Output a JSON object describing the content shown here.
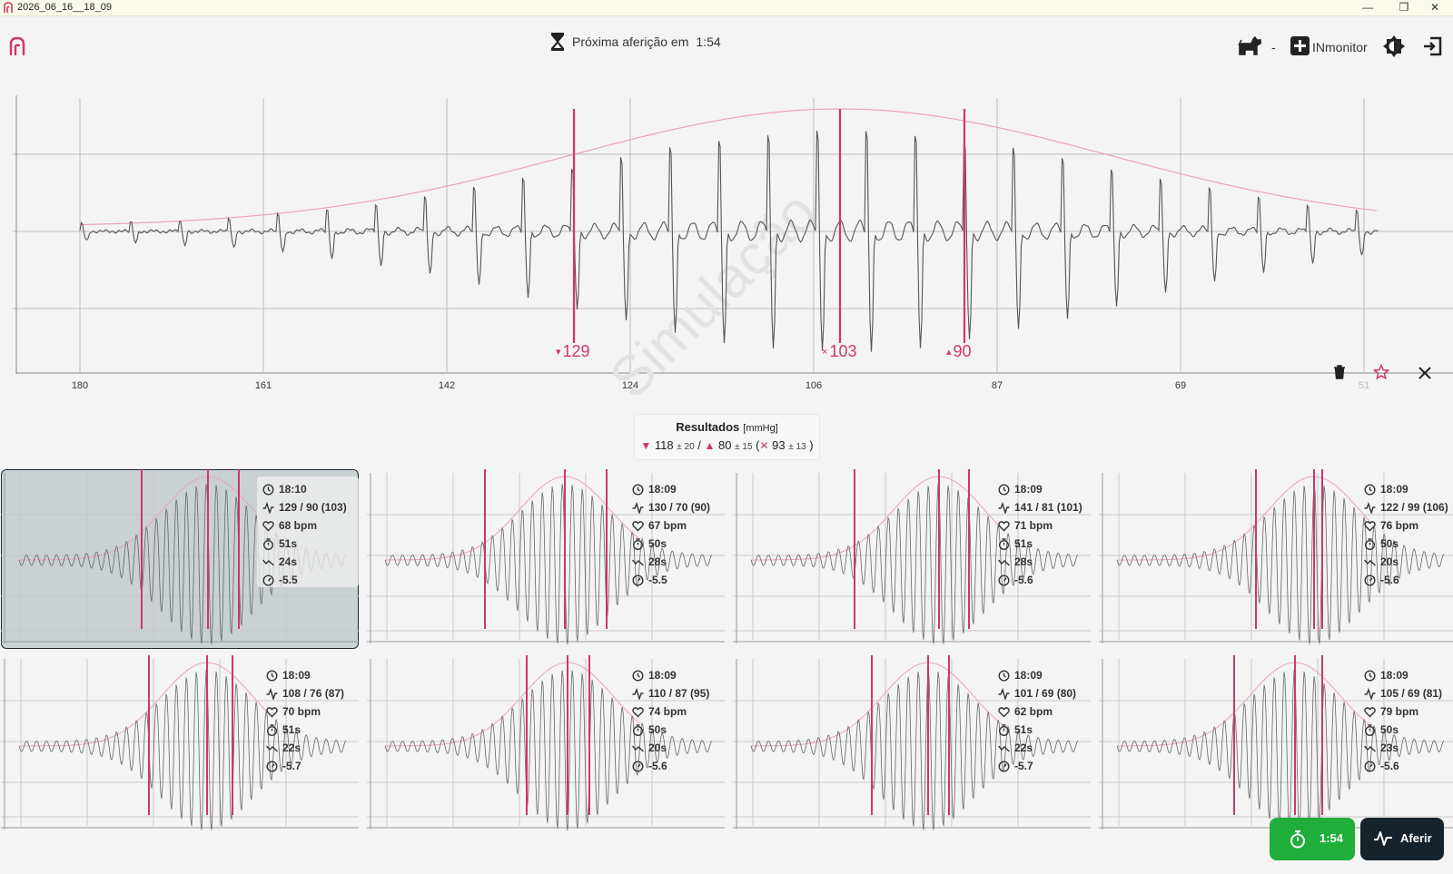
{
  "window": {
    "title": "2026_06_16__18_09",
    "controls": [
      "—",
      "❐",
      "✕"
    ]
  },
  "header": {
    "next_measurement_label": "Próxima aferição em",
    "next_measurement_time": "1:54",
    "separator": "-",
    "device_name": "INmonitor",
    "icons": [
      "app-logo-icon",
      "hourglass-icon",
      "dog-icon",
      "add-icon",
      "brightness-icon",
      "logout-icon"
    ]
  },
  "main_chart": {
    "watermark": "Simulação",
    "x_ticks": [
      "180",
      "161",
      "142",
      "124",
      "106",
      "87",
      "69",
      "51"
    ],
    "markers": [
      {
        "label": "129",
        "symbol": "▾",
        "kind": "systolic"
      },
      {
        "label": "103",
        "symbol": "×",
        "kind": "mean"
      },
      {
        "label": "90",
        "symbol": "▴",
        "kind": "diastolic"
      }
    ],
    "actions": [
      "trash-icon",
      "star-icon",
      "close-icon"
    ]
  },
  "results": {
    "title": "Resultados",
    "unit": "[mmHg]",
    "systolic": "118",
    "systolic_pm": "± 20",
    "slash": "/",
    "diastolic": "80",
    "diastolic_pm": "± 15",
    "open_paren": "(",
    "mean": "93",
    "mean_pm": "± 13",
    "close_paren": ")"
  },
  "measurements": [
    {
      "time": "18:10",
      "pressure": "129 / 90 (103)",
      "hr": "68 bpm",
      "duration": "51s",
      "deflation": "24s",
      "slope": "-5.5",
      "selected": true
    },
    {
      "time": "18:09",
      "pressure": "130 / 70 (90)",
      "hr": "67 bpm",
      "duration": "50s",
      "deflation": "28s",
      "slope": "-5.5",
      "selected": false
    },
    {
      "time": "18:09",
      "pressure": "141 / 81 (101)",
      "hr": "71 bpm",
      "duration": "51s",
      "deflation": "28s",
      "slope": "-5.6",
      "selected": false
    },
    {
      "time": "18:09",
      "pressure": "122 / 99 (106)",
      "hr": "76 bpm",
      "duration": "50s",
      "deflation": "20s",
      "slope": "-5.6",
      "selected": false
    },
    {
      "time": "18:09",
      "pressure": "108 / 76 (87)",
      "hr": "70 bpm",
      "duration": "51s",
      "deflation": "22s",
      "slope": "-5.7",
      "selected": false
    },
    {
      "time": "18:09",
      "pressure": "110 / 87 (95)",
      "hr": "74 bpm",
      "duration": "50s",
      "deflation": "20s",
      "slope": "-5.6",
      "selected": false
    },
    {
      "time": "18:09",
      "pressure": "101 / 69 (80)",
      "hr": "62 bpm",
      "duration": "51s",
      "deflation": "22s",
      "slope": "-5.7",
      "selected": false
    },
    {
      "time": "18:09",
      "pressure": "105 / 69 (81)",
      "hr": "79 bpm",
      "duration": "50s",
      "deflation": "23s",
      "slope": "-5.6",
      "selected": false
    }
  ],
  "footer": {
    "timer_label": "1:54",
    "measure_label": "Aferir"
  },
  "colors": {
    "accent": "#d0366a",
    "envelope": "#eaa3b8",
    "wave": "#555555",
    "grid": "#bcbcbc",
    "timer_green": "#1fae3a",
    "aferir_dark": "#15242c"
  }
}
